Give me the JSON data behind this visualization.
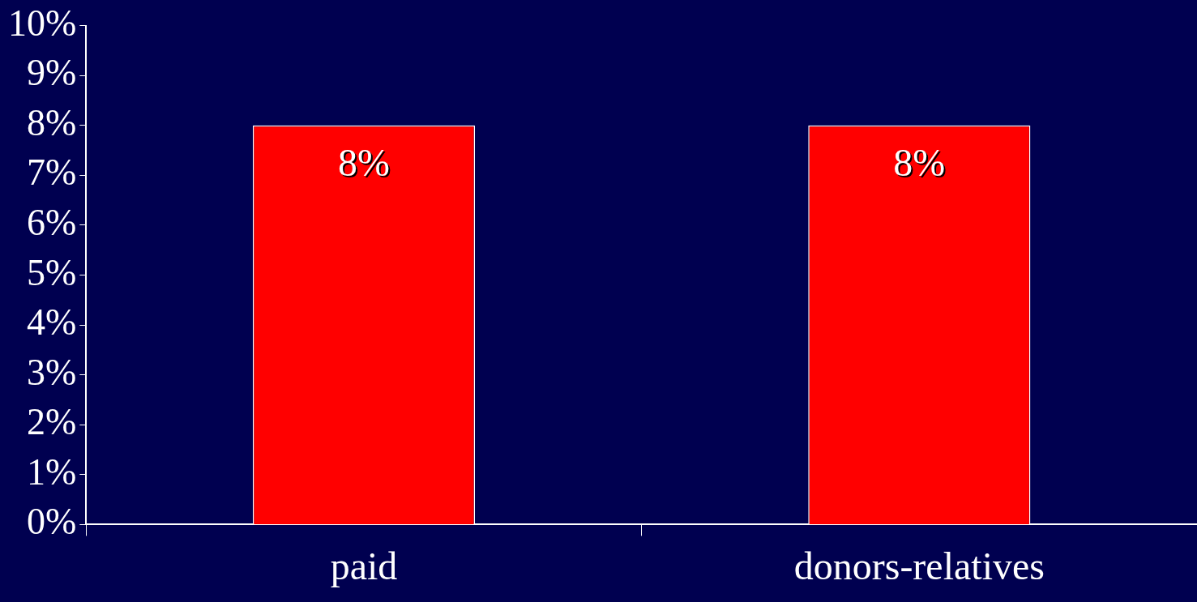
{
  "chart_data": {
    "type": "bar",
    "categories": [
      "paid",
      "donors-relatives"
    ],
    "values": [
      8,
      8
    ],
    "color": "#ff0000",
    "value_labels": [
      "8%",
      "8%"
    ],
    "ylim": [
      0,
      10
    ],
    "yticks": [
      {
        "value": 0,
        "label": "0%"
      },
      {
        "value": 1,
        "label": "1%"
      },
      {
        "value": 2,
        "label": "2%"
      },
      {
        "value": 3,
        "label": "3%"
      },
      {
        "value": 4,
        "label": "4%"
      },
      {
        "value": 5,
        "label": "5%"
      },
      {
        "value": 6,
        "label": "6%"
      },
      {
        "value": 7,
        "label": "7%"
      },
      {
        "value": 8,
        "label": "8%"
      },
      {
        "value": 9,
        "label": "9%"
      },
      {
        "value": 10,
        "label": "10%"
      }
    ]
  }
}
